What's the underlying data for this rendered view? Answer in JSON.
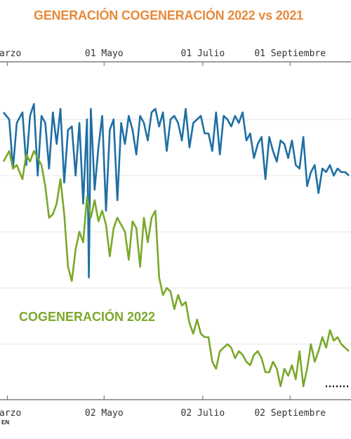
{
  "title": "GENERACIÓN COGENERACIÓN 2022 vs 2021",
  "source": "EN",
  "chart_data": {
    "type": "line",
    "title": "GENERACIÓN COGENERACIÓN 2022 vs 2021",
    "xlabel": "",
    "ylabel": "",
    "grid": true,
    "top_axis_ticks": [
      {
        "label": "arzo",
        "day": 0
      },
      {
        "label": "01 Mayo",
        "day": 51
      },
      {
        "label": "01 Julio",
        "day": 103
      },
      {
        "label": "01 Septiembre",
        "day": 149
      }
    ],
    "bottom_axis_ticks": [
      {
        "label": "arzo",
        "day": 0
      },
      {
        "label": "02 Mayo",
        "day": 51
      },
      {
        "label": "02 Julio",
        "day": 103
      },
      {
        "label": "02 Septiembre",
        "day": 149
      }
    ],
    "series": [
      {
        "name": "",
        "color": "#1f6fa3",
        "x": [
          -2,
          1,
          3,
          5,
          8,
          10,
          12,
          14,
          16,
          18,
          20,
          22,
          24,
          26,
          28,
          30,
          32,
          34,
          36,
          38,
          40,
          42,
          43,
          44,
          46,
          48,
          50,
          52,
          54,
          56,
          58,
          60,
          62,
          64,
          66,
          68,
          70,
          72,
          74,
          76,
          78,
          80,
          82,
          84,
          86,
          88,
          90,
          92,
          94,
          96,
          98,
          100,
          102,
          104,
          106,
          108,
          110,
          112,
          114,
          116,
          118,
          120,
          122,
          124,
          126,
          128,
          130,
          132,
          134,
          136,
          138,
          140,
          142,
          144,
          146,
          148,
          150,
          152,
          154,
          156,
          158,
          160,
          162,
          164,
          166,
          168,
          170,
          172,
          174,
          176,
          178,
          180
        ],
        "y": [
          160,
          170,
          240,
          175,
          160,
          235,
          165,
          148,
          250,
          165,
          175,
          240,
          160,
          205,
          155,
          260,
          185,
          180,
          250,
          175,
          290,
          170,
          395,
          155,
          270,
          210,
          165,
          300,
          185,
          170,
          285,
          175,
          205,
          165,
          185,
          220,
          165,
          175,
          200,
          160,
          155,
          180,
          160,
          215,
          170,
          165,
          175,
          200,
          155,
          210,
          175,
          170,
          165,
          190,
          190,
          215,
          160,
          220,
          165,
          170,
          180,
          165,
          175,
          160,
          200,
          190,
          225,
          205,
          195,
          255,
          195,
          215,
          230,
          200,
          205,
          225,
          200,
          235,
          240,
          195,
          265,
          245,
          235,
          275,
          240,
          245,
          235,
          250,
          240,
          245,
          245,
          250
        ]
      },
      {
        "name": "COGENERACIÓN 2022",
        "color": "#7aa82a",
        "x": [
          -2,
          1,
          3,
          5,
          8,
          10,
          12,
          14,
          16,
          18,
          20,
          22,
          24,
          26,
          28,
          30,
          32,
          34,
          36,
          38,
          40,
          42,
          44,
          46,
          48,
          50,
          52,
          54,
          56,
          58,
          60,
          62,
          64,
          66,
          68,
          70,
          72,
          74,
          76,
          78,
          80,
          82,
          84,
          86,
          88,
          90,
          92,
          94,
          96,
          98,
          100,
          102,
          104,
          106,
          108,
          110,
          112,
          114,
          116,
          118,
          120,
          122,
          124,
          126,
          128,
          130,
          132,
          134,
          136,
          138,
          140,
          142,
          144,
          146,
          148,
          150,
          152,
          154,
          156,
          158,
          160,
          162,
          164,
          166,
          168,
          170,
          172,
          174,
          176,
          178,
          180
        ],
        "y": [
          230,
          215,
          240,
          235,
          255,
          220,
          230,
          215,
          225,
          235,
          265,
          310,
          305,
          290,
          255,
          305,
          380,
          400,
          355,
          330,
          345,
          280,
          310,
          285,
          315,
          300,
          320,
          365,
          325,
          310,
          320,
          330,
          370,
          315,
          325,
          380,
          310,
          345,
          310,
          300,
          395,
          420,
          410,
          415,
          440,
          420,
          435,
          430,
          460,
          475,
          455,
          475,
          480,
          480,
          515,
          525,
          500,
          495,
          490,
          495,
          510,
          500,
          505,
          515,
          520,
          505,
          500,
          510,
          530,
          530,
          515,
          525,
          550,
          525,
          535,
          520,
          540,
          500,
          550,
          525,
          490,
          515,
          500,
          480,
          495,
          470,
          485,
          480,
          490,
          495,
          500
        ]
      }
    ],
    "annotations": [
      {
        "text": "COGENERACIÓN 2022",
        "series": "COGENERACIÓN 2022"
      }
    ]
  }
}
